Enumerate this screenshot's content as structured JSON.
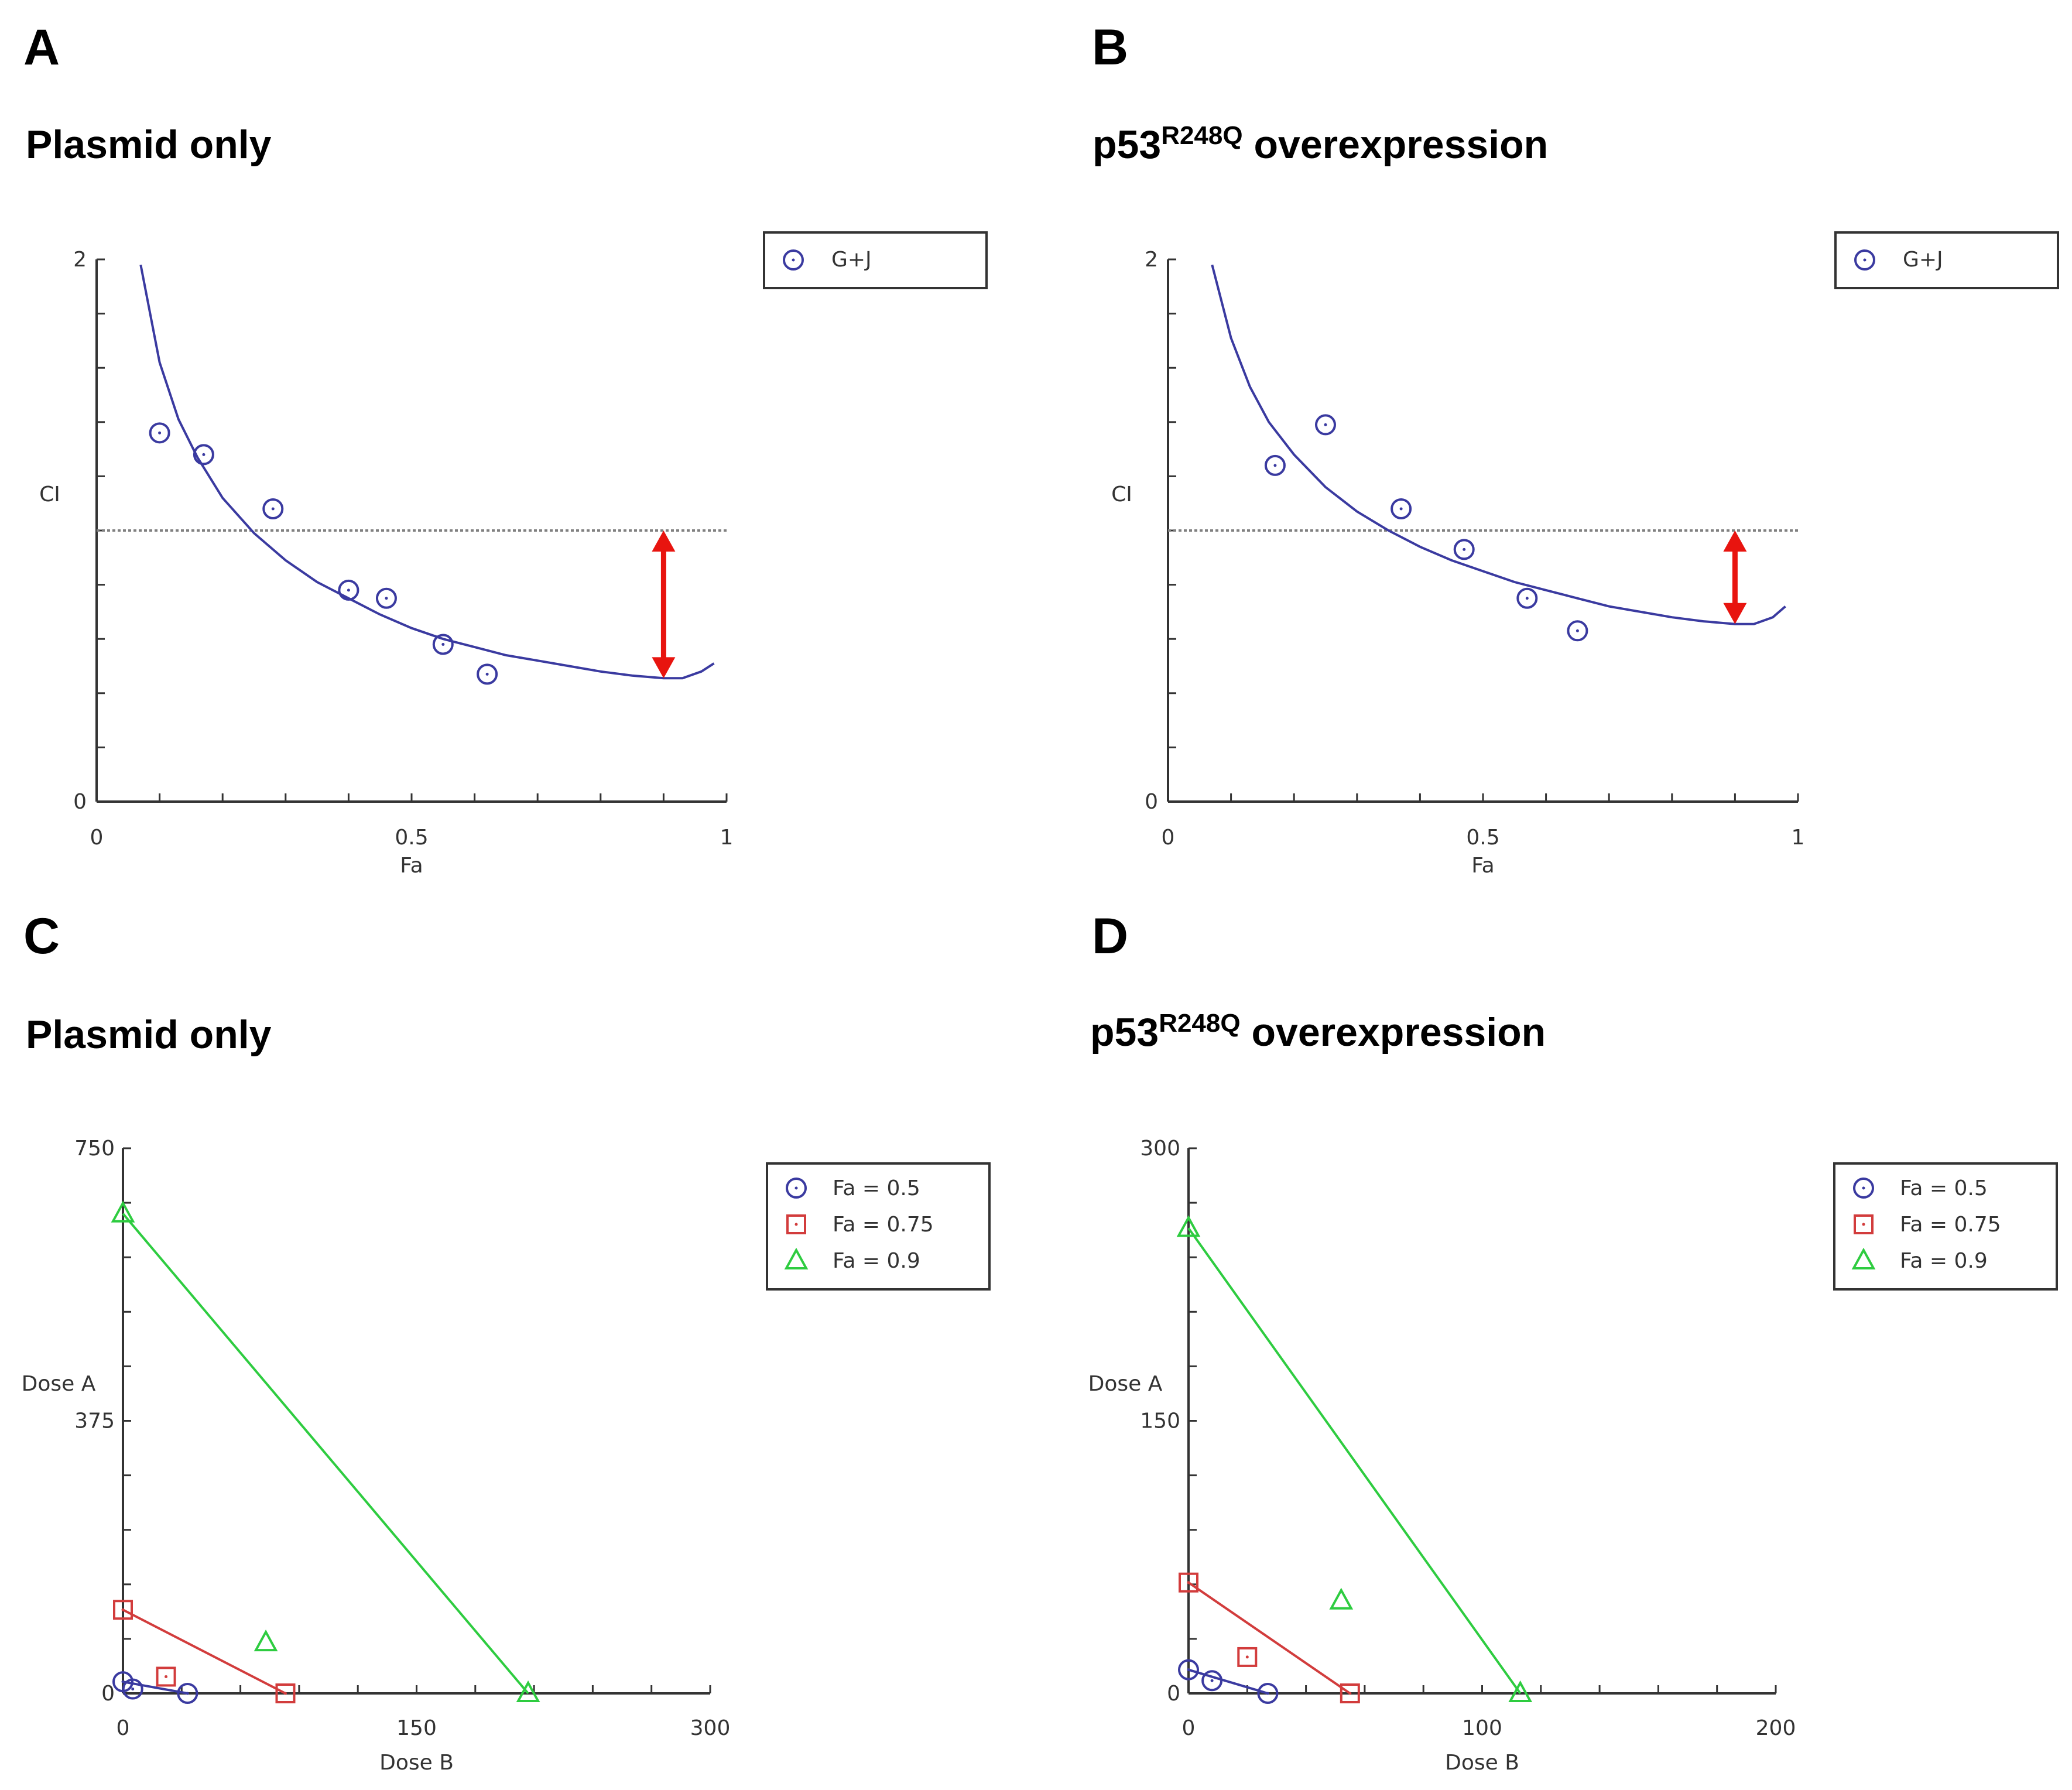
{
  "colors": {
    "series_blue": "#3a3aa0",
    "fa_0_5": "#3a3aa0",
    "fa_0_75": "#d23c3c",
    "fa_0_9": "#2ecc40",
    "arrow": "#e8140f"
  },
  "chart_data": [
    {
      "panel": "A",
      "title": "Plasmid only",
      "type": "scatter",
      "xlabel": "Fa",
      "ylabel": "CI",
      "xlim": [
        0,
        1
      ],
      "ylim": [
        0,
        2
      ],
      "xticks": [
        "0",
        "0.5",
        "1"
      ],
      "yticks": [
        "0",
        "2"
      ],
      "reference_line_y": 1.0,
      "legend": [
        "G+J"
      ],
      "series": [
        {
          "name": "G+J",
          "points": [
            [
              0.1,
              1.36
            ],
            [
              0.17,
              1.28
            ],
            [
              0.28,
              1.08
            ],
            [
              0.4,
              0.78
            ],
            [
              0.46,
              0.75
            ],
            [
              0.55,
              0.58
            ],
            [
              0.62,
              0.47
            ]
          ]
        }
      ],
      "fit_curve": [
        [
          0.07,
          1.98
        ],
        [
          0.1,
          1.62
        ],
        [
          0.13,
          1.41
        ],
        [
          0.16,
          1.27
        ],
        [
          0.2,
          1.12
        ],
        [
          0.25,
          0.99
        ],
        [
          0.3,
          0.89
        ],
        [
          0.35,
          0.81
        ],
        [
          0.4,
          0.75
        ],
        [
          0.45,
          0.69
        ],
        [
          0.5,
          0.64
        ],
        [
          0.55,
          0.6
        ],
        [
          0.6,
          0.57
        ],
        [
          0.65,
          0.54
        ],
        [
          0.7,
          0.52
        ],
        [
          0.75,
          0.5
        ],
        [
          0.8,
          0.48
        ],
        [
          0.85,
          0.465
        ],
        [
          0.9,
          0.455
        ],
        [
          0.93,
          0.455
        ],
        [
          0.96,
          0.48
        ],
        [
          0.98,
          0.51
        ]
      ],
      "arrow": {
        "x": 0.9,
        "from_y": 1.0,
        "to_y": 0.455
      }
    },
    {
      "panel": "B",
      "title_main": "p53",
      "title_sup": "R248Q",
      "title_rest": " overexpression",
      "type": "scatter",
      "xlabel": "Fa",
      "ylabel": "CI",
      "xlim": [
        0,
        1
      ],
      "ylim": [
        0,
        2
      ],
      "xticks": [
        "0",
        "0.5",
        "1"
      ],
      "yticks": [
        "0",
        "2"
      ],
      "reference_line_y": 1.0,
      "legend": [
        "G+J"
      ],
      "series": [
        {
          "name": "G+J",
          "points": [
            [
              0.17,
              1.24
            ],
            [
              0.25,
              1.39
            ],
            [
              0.37,
              1.08
            ],
            [
              0.47,
              0.93
            ],
            [
              0.57,
              0.75
            ],
            [
              0.65,
              0.63
            ]
          ]
        }
      ],
      "fit_curve": [
        [
          0.07,
          1.98
        ],
        [
          0.1,
          1.71
        ],
        [
          0.13,
          1.53
        ],
        [
          0.16,
          1.4
        ],
        [
          0.2,
          1.28
        ],
        [
          0.25,
          1.16
        ],
        [
          0.3,
          1.07
        ],
        [
          0.35,
          1.0
        ],
        [
          0.4,
          0.94
        ],
        [
          0.45,
          0.89
        ],
        [
          0.5,
          0.85
        ],
        [
          0.55,
          0.81
        ],
        [
          0.6,
          0.78
        ],
        [
          0.65,
          0.75
        ],
        [
          0.7,
          0.72
        ],
        [
          0.75,
          0.7
        ],
        [
          0.8,
          0.68
        ],
        [
          0.85,
          0.665
        ],
        [
          0.9,
          0.655
        ],
        [
          0.93,
          0.655
        ],
        [
          0.96,
          0.68
        ],
        [
          0.98,
          0.72
        ]
      ],
      "arrow": {
        "x": 0.9,
        "from_y": 1.0,
        "to_y": 0.655
      }
    },
    {
      "panel": "C",
      "title": "Plasmid only",
      "type": "isobologram",
      "xlabel": "Dose B",
      "ylabel": "Dose A",
      "xlim": [
        0,
        300
      ],
      "ylim": [
        0,
        750
      ],
      "xticks": [
        "0",
        "150",
        "300"
      ],
      "yticks": [
        "0",
        "375",
        "750"
      ],
      "legend": [
        "Fa = 0.5",
        "Fa = 0.75",
        "Fa = 0.9"
      ],
      "series": [
        {
          "name": "Fa = 0.5",
          "marker": "circle",
          "color_key": "fa_0_5",
          "line": [
            [
              0,
              16
            ],
            [
              33,
              0
            ]
          ],
          "point": [
            5,
            6
          ]
        },
        {
          "name": "Fa = 0.75",
          "marker": "square",
          "color_key": "fa_0_75",
          "line": [
            [
              0,
              115
            ],
            [
              83,
              0
            ]
          ],
          "point": [
            22,
            23
          ]
        },
        {
          "name": "Fa = 0.9",
          "marker": "triangle",
          "color_key": "fa_0_9",
          "line": [
            [
              0,
              660
            ],
            [
              207,
              0
            ]
          ],
          "point": [
            73,
            70
          ]
        }
      ]
    },
    {
      "panel": "D",
      "title_main": "p53",
      "title_sup": "R248Q",
      "title_rest": " overexpression",
      "type": "isobologram",
      "xlabel": "Dose B",
      "ylabel": "Dose A",
      "xlim": [
        0,
        200
      ],
      "ylim": [
        0,
        300
      ],
      "xticks": [
        "0",
        "100",
        "200"
      ],
      "yticks": [
        "0",
        "150",
        "300"
      ],
      "legend": [
        "Fa = 0.5",
        "Fa = 0.75",
        "Fa = 0.9"
      ],
      "series": [
        {
          "name": "Fa = 0.5",
          "marker": "circle",
          "color_key": "fa_0_5",
          "line": [
            [
              0,
              13
            ],
            [
              27,
              0
            ]
          ],
          "point": [
            8,
            7
          ]
        },
        {
          "name": "Fa = 0.75",
          "marker": "square",
          "color_key": "fa_0_75",
          "line": [
            [
              0,
              61
            ],
            [
              55,
              0
            ]
          ],
          "point": [
            20,
            20
          ]
        },
        {
          "name": "Fa = 0.9",
          "marker": "triangle",
          "color_key": "fa_0_9",
          "line": [
            [
              0,
              256
            ],
            [
              113,
              0
            ]
          ],
          "point": [
            52,
            51
          ]
        }
      ]
    }
  ]
}
